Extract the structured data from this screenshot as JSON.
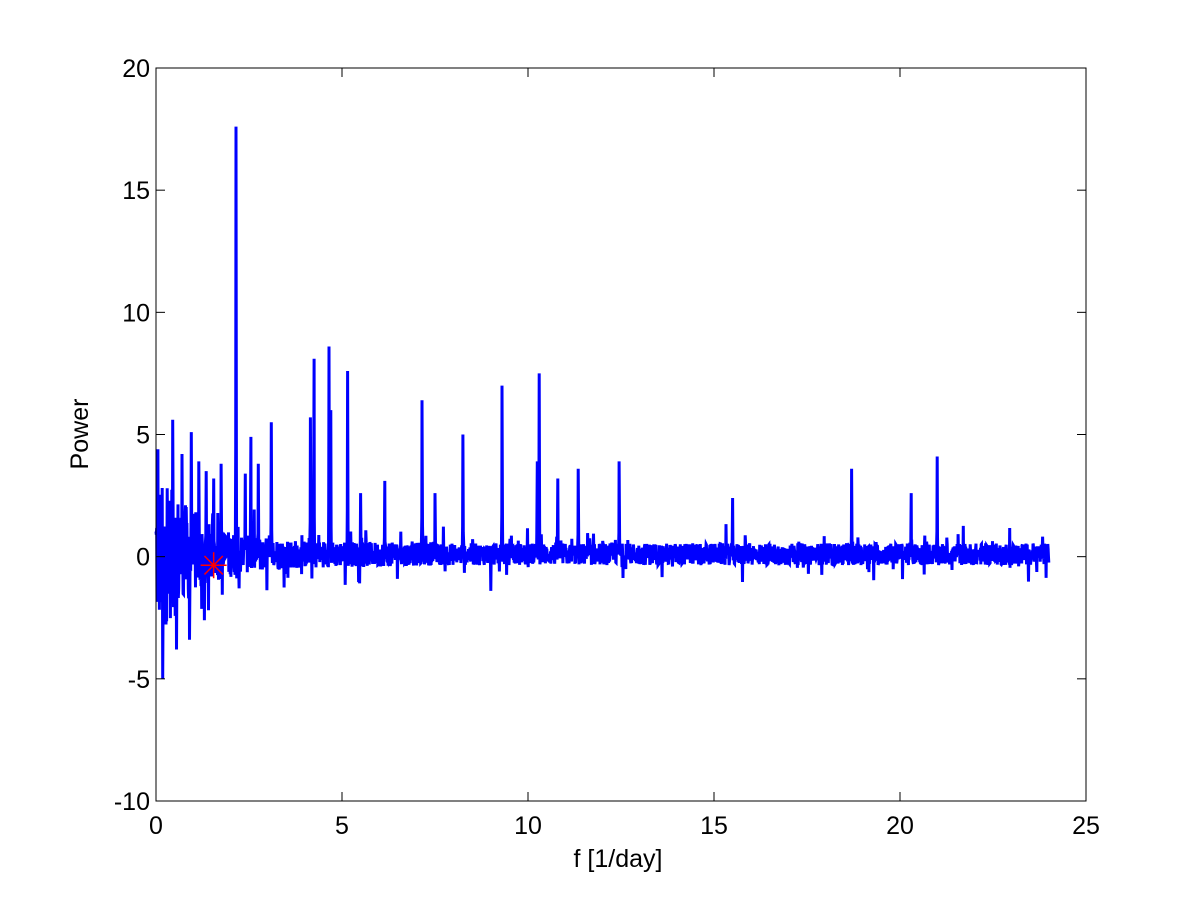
{
  "chart_data": {
    "type": "line",
    "title": "",
    "xlabel": "f [1/day]",
    "ylabel": "Power",
    "xlim": [
      0,
      25
    ],
    "ylim": [
      -10,
      20
    ],
    "xticks": [
      0,
      5,
      10,
      15,
      20,
      25
    ],
    "yticks": [
      -10,
      -5,
      0,
      5,
      10,
      15,
      20
    ],
    "xtick_labels": [
      "0",
      "5",
      "10",
      "15",
      "20",
      "25"
    ],
    "ytick_labels": [
      "-10",
      "-5",
      "0",
      "5",
      "10",
      "15",
      "20"
    ],
    "grid": false,
    "legend": "none",
    "series": [
      {
        "color": "#0000ff",
        "line_width": 3,
        "x_range": [
          0,
          24
        ],
        "noise_envelope": [
          {
            "f": 0.0,
            "amp": 3.0
          },
          {
            "f": 0.5,
            "amp": 2.6
          },
          {
            "f": 1.0,
            "amp": 1.7
          },
          {
            "f": 1.6,
            "amp": 1.1
          },
          {
            "f": 2.5,
            "amp": 0.75
          },
          {
            "f": 4.0,
            "amp": 0.55
          },
          {
            "f": 8.0,
            "amp": 0.45
          },
          {
            "f": 14.0,
            "amp": 0.45
          },
          {
            "f": 24.0,
            "amp": 0.45
          }
        ],
        "peaks": [
          {
            "f": 0.05,
            "power": 4.4
          },
          {
            "f": 0.18,
            "power": -5.0
          },
          {
            "f": 0.3,
            "power": 2.8
          },
          {
            "f": 0.45,
            "power": 5.6
          },
          {
            "f": 0.55,
            "power": -3.8
          },
          {
            "f": 0.7,
            "power": 4.2
          },
          {
            "f": 0.95,
            "power": 5.1
          },
          {
            "f": 1.15,
            "power": 3.9
          },
          {
            "f": 1.35,
            "power": 3.5
          },
          {
            "f": 1.55,
            "power": 3.2
          },
          {
            "f": 1.75,
            "power": 3.8
          },
          {
            "f": 2.15,
            "power": 17.6
          },
          {
            "f": 2.4,
            "power": 3.4
          },
          {
            "f": 2.55,
            "power": 4.9
          },
          {
            "f": 2.75,
            "power": 3.8
          },
          {
            "f": 3.1,
            "power": 5.5
          },
          {
            "f": 4.15,
            "power": 5.7
          },
          {
            "f": 4.25,
            "power": 8.1
          },
          {
            "f": 4.65,
            "power": 8.6
          },
          {
            "f": 4.7,
            "power": 6.0
          },
          {
            "f": 5.15,
            "power": 7.6
          },
          {
            "f": 5.5,
            "power": 2.6
          },
          {
            "f": 6.15,
            "power": 3.1
          },
          {
            "f": 7.15,
            "power": 6.4
          },
          {
            "f": 7.5,
            "power": 2.6
          },
          {
            "f": 8.25,
            "power": 5.0
          },
          {
            "f": 9.3,
            "power": 7.0
          },
          {
            "f": 10.25,
            "power": 3.9
          },
          {
            "f": 10.3,
            "power": 7.5
          },
          {
            "f": 10.8,
            "power": 3.2
          },
          {
            "f": 11.35,
            "power": 3.6
          },
          {
            "f": 12.45,
            "power": 3.9
          },
          {
            "f": 15.5,
            "power": 2.4
          },
          {
            "f": 18.7,
            "power": 3.6
          },
          {
            "f": 20.3,
            "power": 2.6
          },
          {
            "f": 21.0,
            "power": 4.1
          },
          {
            "f": 0.9,
            "power": -3.4
          },
          {
            "f": 1.3,
            "power": -2.6
          },
          {
            "f": 9.0,
            "power": -1.4
          }
        ]
      },
      {
        "type": "marker",
        "symbol": "asterisk",
        "color": "#ff0000",
        "x": 1.55,
        "y": -0.35
      }
    ]
  }
}
